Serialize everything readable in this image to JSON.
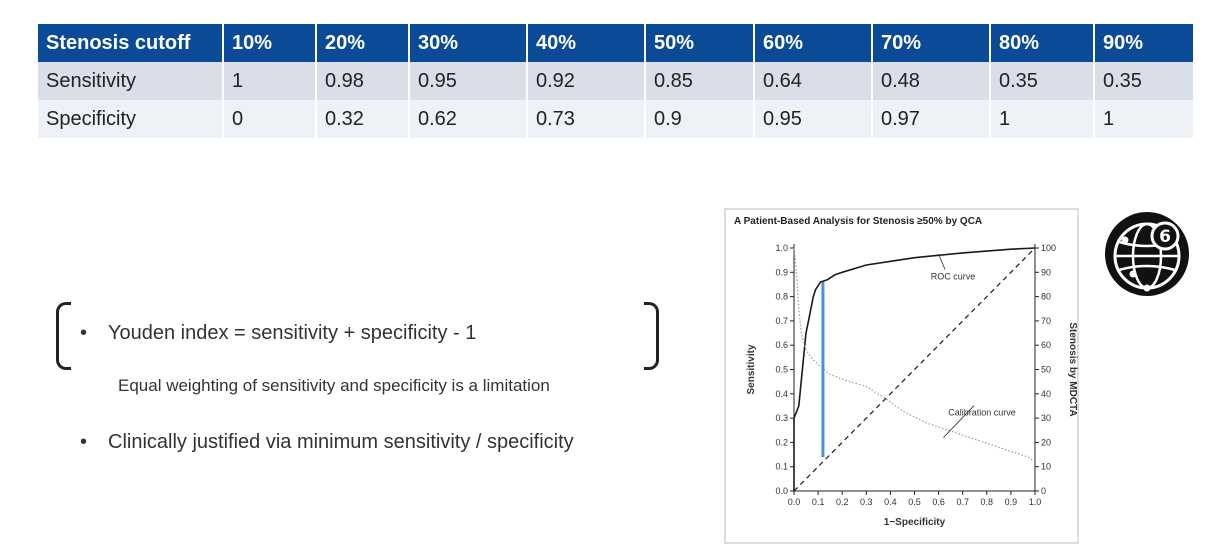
{
  "table": {
    "header": [
      "Stenosis cutoff",
      "10%",
      "20%",
      "30%",
      "40%",
      "50%",
      "60%",
      "70%",
      "80%",
      "90%"
    ],
    "rows": [
      [
        "Sensitivity",
        "1",
        "0.98",
        "0.95",
        "0.92",
        "0.85",
        "0.64",
        "0.48",
        "0.35",
        "0.35"
      ],
      [
        "Specificity",
        "0",
        "0.32",
        "0.62",
        "0.73",
        "0.9",
        "0.95",
        "0.97",
        "1",
        "1"
      ]
    ]
  },
  "bullets": {
    "youden": "Youden index = sensitivity + specificity  - 1",
    "note": "Equal weighting of sensitivity and specificity is a limitation",
    "clinical": "Clinically justified via minimum sensitivity / specificity",
    "glyph": "•"
  },
  "logo": {
    "icon": "globe-network-icon",
    "number": "6"
  },
  "chart_data": {
    "type": "line",
    "title": "A  Patient-Based Analysis for Stenosis ≥50% by QCA",
    "xlabel": "1−Specificity",
    "ylabel": "Sensitivity",
    "y2label": "Stenosis by MDCTA",
    "xlim": [
      0,
      1
    ],
    "ylim": [
      0,
      1
    ],
    "y2lim": [
      0,
      100
    ],
    "x_ticks": [
      "0.0",
      "0.1",
      "0.2",
      "0.3",
      "0.4",
      "0.5",
      "0.6",
      "0.7",
      "0.8",
      "0.9",
      "1.0"
    ],
    "y_ticks": [
      "0.0",
      "0.1",
      "0.2",
      "0.3",
      "0.4",
      "0.5",
      "0.6",
      "0.7",
      "0.8",
      "0.9",
      "1.0"
    ],
    "y2_ticks": [
      "0",
      "10",
      "20",
      "30",
      "40",
      "50",
      "60",
      "70",
      "80",
      "90",
      "100"
    ],
    "series": [
      {
        "name": "ROC curve",
        "color": "#1a1a1a",
        "style": "solid",
        "points": [
          [
            0,
            0
          ],
          [
            0,
            0.3
          ],
          [
            0.02,
            0.35
          ],
          [
            0.03,
            0.45
          ],
          [
            0.04,
            0.55
          ],
          [
            0.05,
            0.65
          ],
          [
            0.06,
            0.7
          ],
          [
            0.07,
            0.75
          ],
          [
            0.08,
            0.8
          ],
          [
            0.09,
            0.83
          ],
          [
            0.11,
            0.86
          ],
          [
            0.14,
            0.87
          ],
          [
            0.17,
            0.89
          ],
          [
            0.2,
            0.9
          ],
          [
            0.3,
            0.93
          ],
          [
            0.5,
            0.96
          ],
          [
            0.7,
            0.98
          ],
          [
            0.9,
            0.995
          ],
          [
            1,
            1
          ]
        ]
      },
      {
        "name": "Calibration curve",
        "color": "#9a9a9a",
        "style": "dotted",
        "axis": "y2",
        "points": [
          [
            0,
            100
          ],
          [
            0.01,
            90
          ],
          [
            0.02,
            75
          ],
          [
            0.03,
            65
          ],
          [
            0.05,
            58
          ],
          [
            0.07,
            55
          ],
          [
            0.1,
            52
          ],
          [
            0.15,
            48
          ],
          [
            0.2,
            46
          ],
          [
            0.3,
            43
          ],
          [
            0.38,
            38
          ],
          [
            0.45,
            33
          ],
          [
            0.55,
            28
          ],
          [
            0.7,
            23
          ],
          [
            0.85,
            18
          ],
          [
            0.97,
            14
          ],
          [
            1,
            12
          ]
        ]
      },
      {
        "name": "",
        "color": "#1a1a1a",
        "style": "dashed",
        "points": [
          [
            0,
            0
          ],
          [
            1,
            1
          ]
        ]
      }
    ],
    "annotations": [
      {
        "text": "ROC curve",
        "at": [
          0.66,
          0.87
        ],
        "arrow_to": [
          0.6,
          0.975
        ]
      },
      {
        "text": "Calibration curve",
        "at": [
          0.78,
          0.31
        ],
        "arrow_to": [
          0.62,
          0.22
        ]
      }
    ],
    "highlight": {
      "x": 0.12,
      "y_from": 0.14,
      "y_to": 0.86,
      "color": "#4a90e2"
    }
  }
}
